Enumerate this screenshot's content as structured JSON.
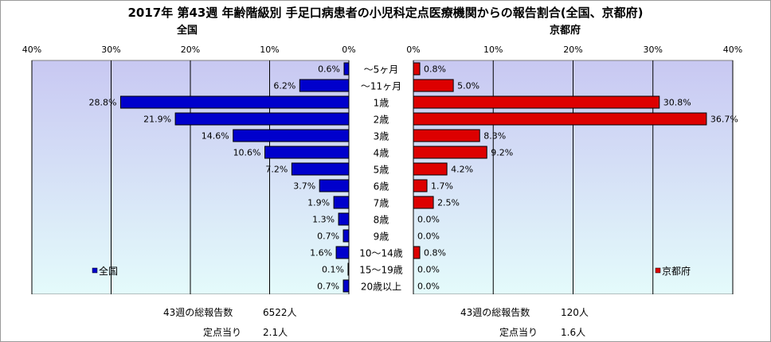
{
  "title": "2017年 第43週 年齢階級別 手足口病患者の小児科定点医療機関からの報告割合(全国、京都府)",
  "colors": {
    "left_bar": "#0000cc",
    "right_bar": "#dd0000",
    "left_plot_top": "#c8c8f2",
    "left_plot_bottom": "#e4fbfb",
    "right_plot_top": "#c8c8f2",
    "right_plot_bottom": "#e4fbfb"
  },
  "chart_data": [
    {
      "type": "bar",
      "orientation": "horizontal-reversed",
      "title": "全国",
      "categories": [
        "～5ヶ月",
        "～11ヶ月",
        "1歳",
        "2歳",
        "3歳",
        "4歳",
        "5歳",
        "6歳",
        "7歳",
        "8歳",
        "9歳",
        "10～14歳",
        "15～19歳",
        "20歳以上"
      ],
      "series": [
        {
          "name": "全国",
          "values": [
            0.6,
            6.2,
            28.8,
            21.9,
            14.6,
            10.6,
            7.2,
            3.7,
            1.9,
            1.3,
            0.7,
            1.6,
            0.1,
            0.7
          ]
        }
      ],
      "data_labels": [
        "0.6%",
        "6.2%",
        "28.8%",
        "21.9%",
        "14.6%",
        "10.6%",
        "7.2%",
        "3.7%",
        "1.9%",
        "1.3%",
        "0.7%",
        "1.6%",
        "0.1%",
        "0.7%"
      ],
      "xlim": [
        0,
        40
      ],
      "ticks": [
        "40%",
        "30%",
        "20%",
        "10%",
        "0%"
      ],
      "grid": true,
      "legend": "bottom-left",
      "total_label": "43週の総報告数",
      "total_value": "6522人",
      "per_label": "定点当り",
      "per_value": "2.1人"
    },
    {
      "type": "bar",
      "orientation": "horizontal",
      "title": "京都府",
      "categories": [
        "～5ヶ月",
        "～11ヶ月",
        "1歳",
        "2歳",
        "3歳",
        "4歳",
        "5歳",
        "6歳",
        "7歳",
        "8歳",
        "9歳",
        "10～14歳",
        "15～19歳",
        "20歳以上"
      ],
      "series": [
        {
          "name": "京都府",
          "values": [
            0.8,
            5.0,
            30.8,
            36.7,
            8.3,
            9.2,
            4.2,
            1.7,
            2.5,
            0.0,
            0.0,
            0.8,
            0.0,
            0.0
          ]
        }
      ],
      "data_labels": [
        "0.8%",
        "5.0%",
        "30.8%",
        "36.7%",
        "8.3%",
        "9.2%",
        "4.2%",
        "1.7%",
        "2.5%",
        "0.0%",
        "0.0%",
        "0.8%",
        "0.0%",
        "0.0%"
      ],
      "xlim": [
        0,
        40
      ],
      "ticks": [
        "0%",
        "10%",
        "20%",
        "30%",
        "40%"
      ],
      "grid": true,
      "legend": "bottom-right",
      "total_label": "43週の総報告数",
      "total_value": "120人",
      "per_label": "定点当り",
      "per_value": "1.6人"
    }
  ]
}
